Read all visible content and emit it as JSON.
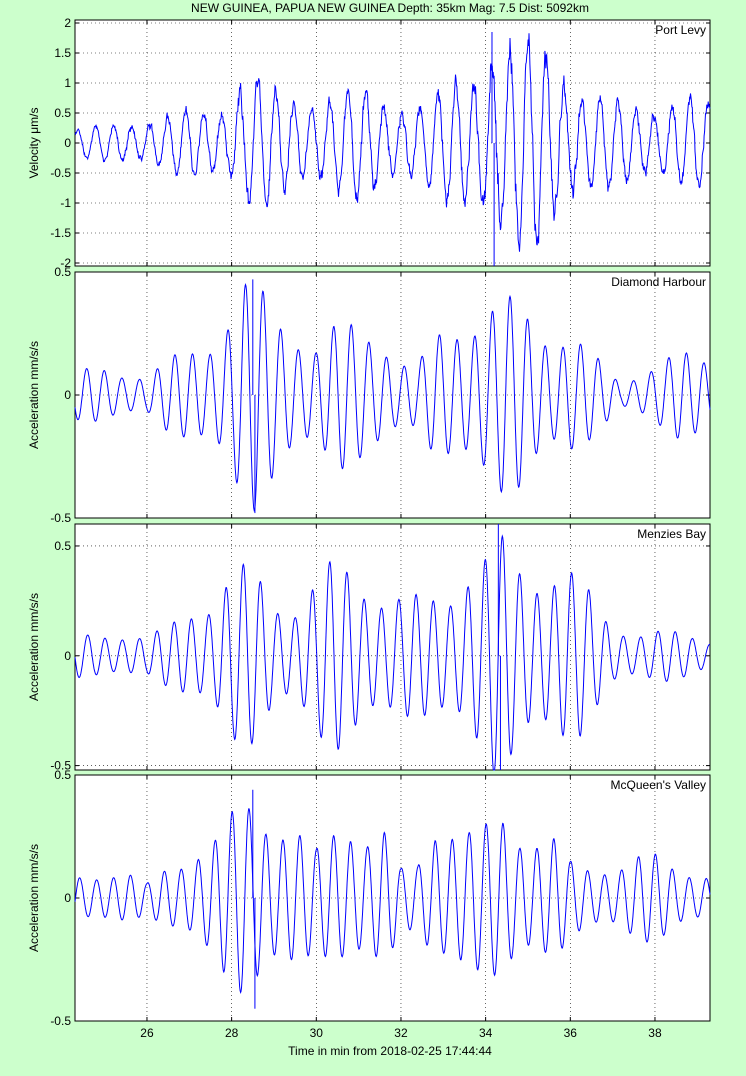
{
  "figure": {
    "title": "NEW GUINEA, PAPUA NEW GUINEA  Depth: 35km  Mag: 7.5  Dist: 5092km",
    "xlabel": "Time in min from 2018-02-25 17:44:44"
  },
  "colors": {
    "background": "#ccffcc",
    "axes": "#ffffff",
    "trace": "#0000ff"
  },
  "chart_data": [
    {
      "type": "line",
      "station": "Port Levy",
      "ylabel": "Velocity μm/s",
      "xlim": [
        24.3,
        39.3
      ],
      "ylim": [
        -2.05,
        2.05
      ],
      "yticks": [
        2,
        1.5,
        1,
        0.5,
        0,
        -0.5,
        -1,
        -1.5,
        -2
      ],
      "ytick_labels": [
        "2",
        "1.5",
        "1",
        "0.5",
        "0",
        "-0.5",
        "-1",
        "-1.5",
        "-2"
      ],
      "xticks": [
        26,
        28,
        30,
        32,
        34,
        36,
        38
      ],
      "grid": true,
      "envelope": {
        "x": [
          24.3,
          25.0,
          26.0,
          26.6,
          27.0,
          27.9,
          28.2,
          28.6,
          29.0,
          29.5,
          30.0,
          30.5,
          31.0,
          31.5,
          32.0,
          32.5,
          33.0,
          33.4,
          33.8,
          34.2,
          34.6,
          35.0,
          35.4,
          35.8,
          36.2,
          36.8,
          37.5,
          38.2,
          38.8,
          39.3
        ],
        "amp": [
          0.25,
          0.3,
          0.45,
          0.5,
          0.55,
          0.7,
          1.2,
          1.2,
          0.9,
          0.85,
          0.9,
          0.85,
          0.95,
          0.85,
          0.75,
          0.7,
          0.9,
          1.2,
          1.5,
          1.9,
          1.7,
          1.7,
          1.75,
          1.5,
          1.0,
          0.75,
          0.7,
          0.75,
          0.8,
          0.7
        ]
      },
      "peaks": {
        "max": 1.85,
        "min": -2.05,
        "time_of_max": 34.15
      }
    },
    {
      "type": "line",
      "station": "Diamond Harbour",
      "ylabel": "Acceleration mm/s/s",
      "xlim": [
        24.3,
        39.3
      ],
      "ylim": [
        -0.5,
        0.5
      ],
      "yticks": [
        0.5,
        0,
        -0.5
      ],
      "ytick_labels": [
        "0.5",
        "0",
        "-0.5"
      ],
      "xticks": [
        26,
        28,
        30,
        32,
        34,
        36,
        38
      ],
      "grid": true,
      "envelope": {
        "x": [
          24.3,
          25.0,
          25.6,
          26.0,
          26.5,
          27.0,
          27.6,
          28.0,
          28.3,
          28.6,
          29.0,
          29.5,
          30.0,
          30.5,
          31.0,
          31.5,
          32.0,
          32.4,
          32.8,
          33.2,
          33.6,
          34.0,
          34.4,
          34.8,
          35.2,
          35.6,
          36.0,
          36.4,
          36.8,
          37.2,
          37.6,
          38.0,
          38.5,
          39.3
        ],
        "amp": [
          0.1,
          0.12,
          0.1,
          0.08,
          0.15,
          0.2,
          0.27,
          0.38,
          0.47,
          0.47,
          0.37,
          0.3,
          0.22,
          0.3,
          0.3,
          0.28,
          0.15,
          0.13,
          0.25,
          0.3,
          0.35,
          0.4,
          0.42,
          0.38,
          0.3,
          0.28,
          0.3,
          0.2,
          0.12,
          0.05,
          0.1,
          0.15,
          0.18,
          0.15
        ]
      },
      "peaks": {
        "max": 0.47,
        "min": -0.48,
        "time_of_max": 28.5
      }
    },
    {
      "type": "line",
      "station": "Menzies Bay",
      "ylabel": "Acceleration mm/s/s",
      "xlim": [
        24.3,
        39.3
      ],
      "ylim": [
        -0.52,
        0.6
      ],
      "yticks": [
        0.5,
        0,
        -0.5
      ],
      "ytick_labels": [
        "0.5",
        "0",
        "-0.5"
      ],
      "xticks": [
        26,
        28,
        30,
        32,
        34,
        36,
        38
      ],
      "grid": true,
      "envelope": {
        "x": [
          24.3,
          25.0,
          25.6,
          26.0,
          26.5,
          27.0,
          27.6,
          28.0,
          28.3,
          28.6,
          29.0,
          29.5,
          30.0,
          30.4,
          30.8,
          31.2,
          31.6,
          32.0,
          32.4,
          32.8,
          33.2,
          33.6,
          34.0,
          34.3,
          34.6,
          35.0,
          35.4,
          35.8,
          36.2,
          36.6,
          37.0,
          37.6,
          38.2,
          38.8,
          39.3
        ],
        "amp": [
          0.1,
          0.12,
          0.1,
          0.08,
          0.15,
          0.25,
          0.28,
          0.38,
          0.42,
          0.42,
          0.3,
          0.25,
          0.35,
          0.45,
          0.45,
          0.38,
          0.3,
          0.28,
          0.28,
          0.3,
          0.35,
          0.45,
          0.48,
          0.58,
          0.48,
          0.42,
          0.45,
          0.45,
          0.38,
          0.25,
          0.15,
          0.12,
          0.12,
          0.1,
          0.08
        ]
      },
      "peaks": {
        "max": 0.6,
        "min": -0.52,
        "time_of_max": 34.3
      }
    },
    {
      "type": "line",
      "station": "McQueen's Valley",
      "ylabel": "Acceleration mm/s/s",
      "xlim": [
        24.3,
        39.3
      ],
      "ylim": [
        -0.5,
        0.5
      ],
      "yticks": [
        0.5,
        0,
        -0.5
      ],
      "ytick_labels": [
        "0.5",
        "0",
        "-0.5"
      ],
      "xticks": [
        26,
        28,
        30,
        32,
        34,
        36,
        38
      ],
      "grid": true,
      "envelope": {
        "x": [
          24.3,
          25.0,
          25.6,
          26.0,
          26.5,
          27.0,
          27.6,
          28.0,
          28.3,
          28.6,
          29.0,
          29.5,
          30.0,
          30.4,
          30.8,
          31.2,
          31.6,
          32.0,
          32.4,
          32.8,
          33.2,
          33.6,
          34.0,
          34.4,
          34.8,
          35.2,
          35.6,
          36.0,
          36.5,
          37.0,
          37.5,
          38.0,
          38.5,
          39.3
        ],
        "amp": [
          0.1,
          0.12,
          0.1,
          0.06,
          0.15,
          0.2,
          0.25,
          0.35,
          0.44,
          0.44,
          0.36,
          0.3,
          0.2,
          0.3,
          0.35,
          0.3,
          0.3,
          0.12,
          0.15,
          0.35,
          0.35,
          0.3,
          0.3,
          0.35,
          0.3,
          0.3,
          0.28,
          0.15,
          0.12,
          0.15,
          0.2,
          0.18,
          0.12,
          0.12
        ]
      },
      "peaks": {
        "max": 0.44,
        "min": -0.45,
        "time_of_max": 28.5
      }
    }
  ]
}
